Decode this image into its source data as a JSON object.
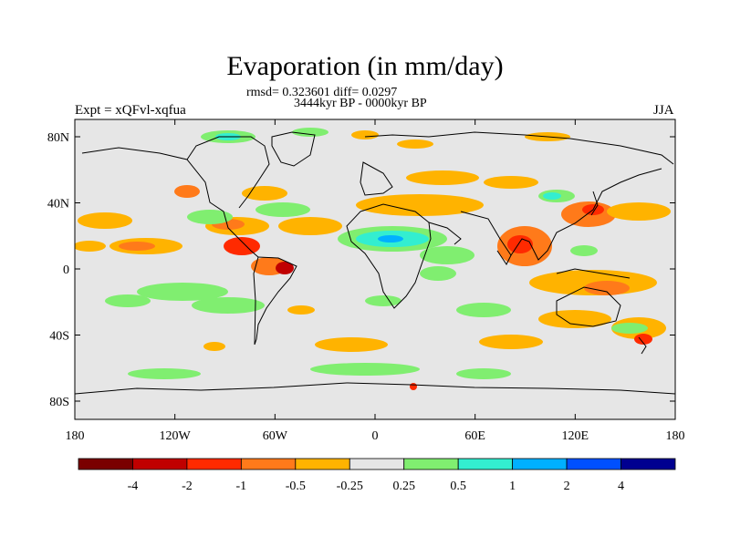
{
  "title": "Evaporation (in mm/day)",
  "stats": "rmsd= 0.323601 diff= 0.0297",
  "period": "3444kyr BP - 0000kyr BP",
  "experiment": "Expt = xQFvl-xqfua",
  "season": "JJA",
  "lat_ticks": [
    "80N",
    "40N",
    "0",
    "40S",
    "80S"
  ],
  "lon_ticks": [
    "180",
    "120W",
    "60W",
    "0",
    "60E",
    "120E",
    "180"
  ],
  "colorbar": {
    "colors": [
      "#7a0000",
      "#c00000",
      "#ff2a00",
      "#ff7a1a",
      "#ffb300",
      "#e6e6e6",
      "#80ee70",
      "#33eed0",
      "#00b0ff",
      "#0050ff",
      "#000090"
    ],
    "labels": [
      "-4",
      "-2",
      "-1",
      "-0.5",
      "-0.25",
      "0.25",
      "0.5",
      "1",
      "2",
      "4"
    ]
  }
}
